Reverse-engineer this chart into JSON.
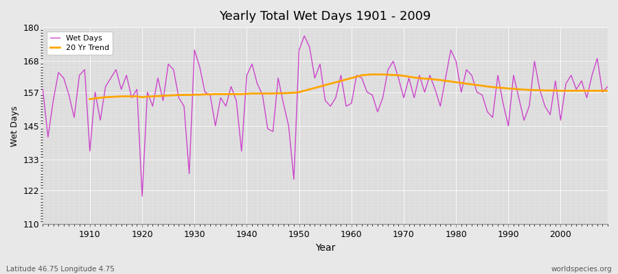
{
  "title": "Yearly Total Wet Days 1901 - 2009",
  "xlabel": "Year",
  "ylabel": "Wet Days",
  "subtitle_left": "Latitude 46.75 Longitude 4.75",
  "subtitle_right": "worldspecies.org",
  "line_color": "#CC44CC",
  "trend_color": "#FFA500",
  "bg_color": "#E8E8E8",
  "plot_bg_color": "#DCDCDC",
  "ylim": [
    110,
    180
  ],
  "yticks": [
    110,
    122,
    133,
    145,
    157,
    168,
    180
  ],
  "xlim": [
    1901,
    2009
  ],
  "xticks": [
    1910,
    1920,
    1930,
    1940,
    1950,
    1960,
    1970,
    1980,
    1990,
    2000
  ],
  "years": [
    1901,
    1902,
    1903,
    1904,
    1905,
    1906,
    1907,
    1908,
    1909,
    1910,
    1911,
    1912,
    1913,
    1914,
    1915,
    1916,
    1917,
    1918,
    1919,
    1920,
    1921,
    1922,
    1923,
    1924,
    1925,
    1926,
    1927,
    1928,
    1929,
    1930,
    1931,
    1932,
    1933,
    1934,
    1935,
    1936,
    1937,
    1938,
    1939,
    1940,
    1941,
    1942,
    1943,
    1944,
    1945,
    1946,
    1947,
    1948,
    1949,
    1950,
    1951,
    1952,
    1953,
    1954,
    1955,
    1956,
    1957,
    1958,
    1959,
    1960,
    1961,
    1962,
    1963,
    1964,
    1965,
    1966,
    1967,
    1968,
    1969,
    1970,
    1971,
    1972,
    1973,
    1974,
    1975,
    1976,
    1977,
    1978,
    1979,
    1980,
    1981,
    1982,
    1983,
    1984,
    1985,
    1986,
    1987,
    1988,
    1989,
    1990,
    1991,
    1992,
    1993,
    1994,
    1995,
    1996,
    1997,
    1998,
    1999,
    2000,
    2001,
    2002,
    2003,
    2004,
    2005,
    2006,
    2007,
    2008,
    2009
  ],
  "wet_days": [
    158,
    141,
    154,
    164,
    162,
    156,
    148,
    163,
    165,
    136,
    157,
    147,
    159,
    162,
    165,
    158,
    163,
    155,
    158,
    120,
    157,
    152,
    162,
    154,
    167,
    165,
    155,
    152,
    128,
    172,
    166,
    157,
    156,
    145,
    155,
    152,
    159,
    154,
    136,
    163,
    167,
    160,
    156,
    144,
    143,
    162,
    153,
    145,
    126,
    172,
    177,
    173,
    162,
    167,
    154,
    152,
    155,
    163,
    152,
    153,
    163,
    162,
    157,
    156,
    150,
    155,
    165,
    168,
    162,
    155,
    162,
    155,
    163,
    157,
    163,
    158,
    152,
    162,
    172,
    168,
    157,
    165,
    163,
    157,
    156,
    150,
    148,
    163,
    153,
    145,
    163,
    155,
    147,
    152,
    168,
    158,
    152,
    149,
    161,
    147,
    160,
    163,
    158,
    161,
    155,
    163,
    169,
    157,
    159
  ],
  "trend": [
    null,
    null,
    null,
    null,
    null,
    null,
    null,
    null,
    null,
    154.5,
    154.8,
    155.0,
    155.2,
    155.3,
    155.4,
    155.5,
    155.5,
    155.5,
    155.5,
    155.2,
    155.4,
    155.5,
    155.6,
    155.7,
    155.8,
    155.9,
    156.0,
    156.0,
    156.0,
    156.1,
    156.1,
    156.2,
    156.2,
    156.3,
    156.3,
    156.3,
    156.3,
    156.3,
    156.3,
    156.4,
    156.5,
    156.5,
    156.5,
    156.5,
    156.5,
    156.6,
    156.6,
    156.7,
    156.8,
    157.0,
    157.5,
    158.0,
    158.5,
    159.0,
    159.5,
    160.0,
    160.5,
    161.0,
    161.5,
    162.0,
    162.5,
    163.0,
    163.2,
    163.3,
    163.3,
    163.3,
    163.2,
    163.1,
    163.0,
    162.8,
    162.5,
    162.2,
    162.0,
    161.8,
    161.7,
    161.5,
    161.3,
    161.0,
    160.8,
    160.5,
    160.3,
    160.0,
    159.8,
    159.5,
    159.3,
    159.0,
    158.8,
    158.6,
    158.5,
    158.3,
    158.2,
    158.0,
    157.9,
    157.8,
    157.7,
    157.7,
    157.6,
    157.6,
    157.6,
    157.5,
    157.5,
    157.5,
    157.5,
    157.5,
    157.5,
    157.5,
    157.5,
    157.5,
    157.5
  ]
}
